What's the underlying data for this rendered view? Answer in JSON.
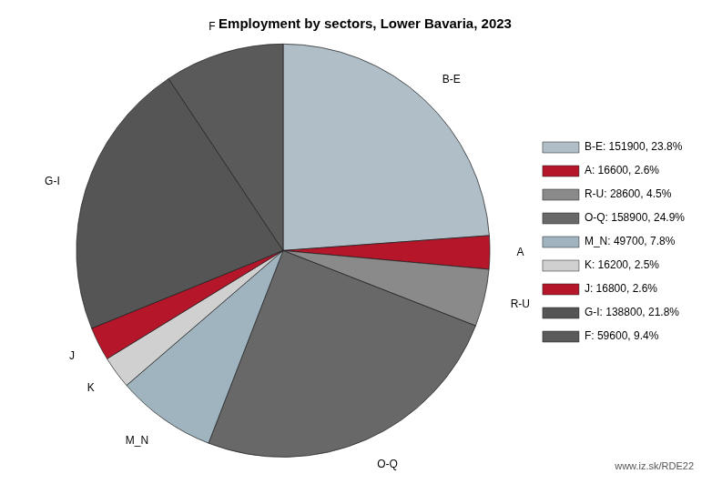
{
  "chart_data": {
    "type": "pie",
    "title": "Employment by sectors, Lower Bavaria, 2023",
    "categories": [
      "B-E",
      "A",
      "R-U",
      "O-Q",
      "M_N",
      "K",
      "J",
      "G-I",
      "F"
    ],
    "values": [
      151900,
      16600,
      28600,
      158900,
      49700,
      16200,
      16800,
      138800,
      59600
    ],
    "value_labels": [
      "B-E: 151900, 23.8%",
      "A: 16600, 2.6%",
      "R-U: 28600, 4.5%",
      "O-Q: 158900, 24.9%",
      "M_N: 49700, 7.8%",
      "K: 16200, 2.5%",
      "J: 16800, 2.6%",
      "G-I: 138800, 21.8%",
      "F: 59600, 9.4%"
    ],
    "colors": [
      "#b0bec8",
      "#b5162a",
      "#8a8a8a",
      "#686868",
      "#a0b4c0",
      "#d0d0d0",
      "#b5162a",
      "#555555",
      "#5a5a5a"
    ],
    "legend": "right",
    "annotations": [
      "www.iz.sk/RDE22"
    ]
  }
}
